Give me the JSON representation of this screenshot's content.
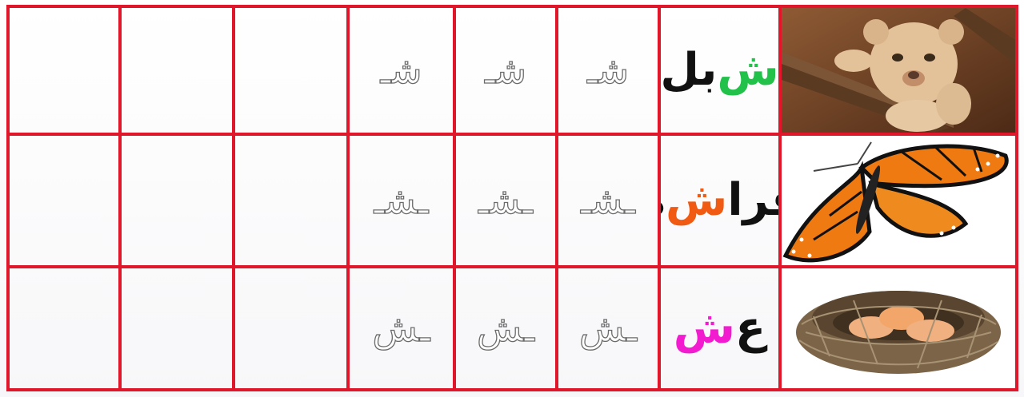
{
  "rows": [
    {
      "picture": "lion-cub-photo",
      "word": {
        "first": "ش",
        "rest": "بل",
        "first_color": "#22c14a",
        "rest_color": "#111111"
      },
      "trace": [
        "شـ",
        "شـ",
        "شـ"
      ]
    },
    {
      "picture": "butterfly-photo",
      "word": {
        "start": "فرا",
        "mid": "ش",
        "end": "ة",
        "start_color": "#111111",
        "mid_color": "#f05a12",
        "end_color": "#111111"
      },
      "trace": [
        "ـشـ",
        "ـشـ",
        "ـشـ"
      ]
    },
    {
      "picture": "nest-photo",
      "word": {
        "start": "ع",
        "end": "ش",
        "start_color": "#111111",
        "end_color": "#f21bd0"
      },
      "trace": [
        "ـش",
        "ـش",
        "ـش"
      ]
    }
  ],
  "colors": {
    "grid": "#e0162b",
    "trace_outline": "#6b6b6b"
  }
}
